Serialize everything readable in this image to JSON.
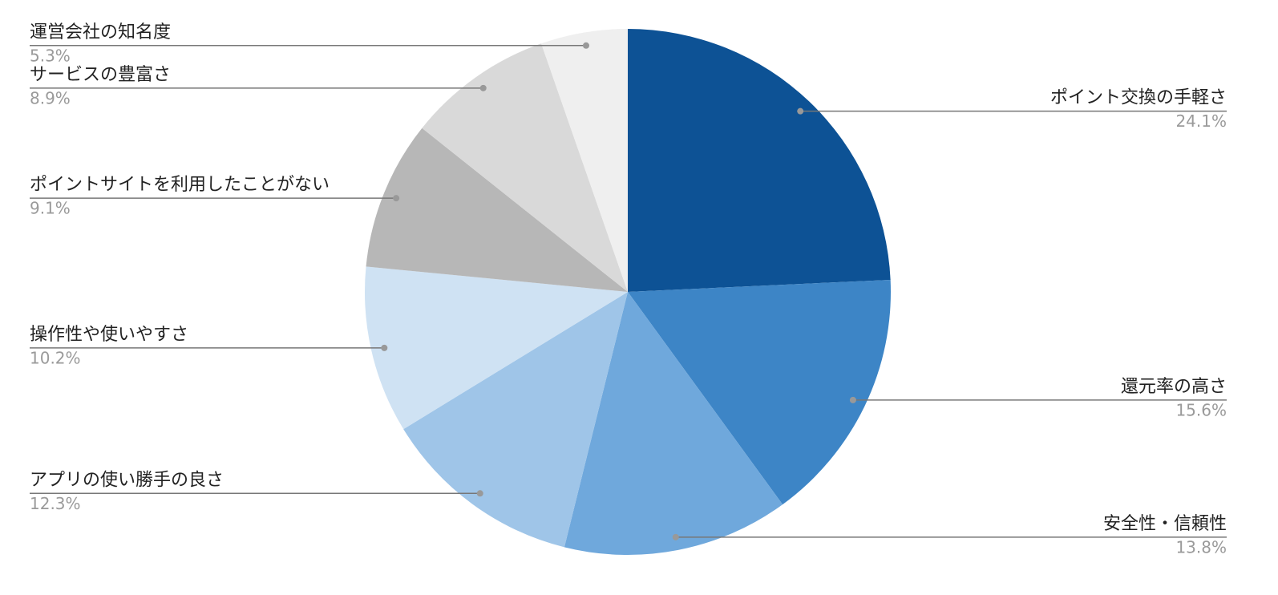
{
  "chart_data": {
    "type": "pie",
    "categories": [
      "ポイント交換の手軽さ",
      "還元率の高さ",
      "安全性・信頼性",
      "アプリの使い勝手の良さ",
      "操作性や使いやすさ",
      "ポイントサイトを利用したことがない",
      "サービスの豊富さ",
      "運営会社の知名度"
    ],
    "values": [
      24.1,
      15.6,
      13.8,
      12.3,
      10.2,
      9.1,
      8.9,
      5.3
    ],
    "value_labels": [
      "24.1%",
      "15.6%",
      "13.8%",
      "12.3%",
      "10.2%",
      "9.1%",
      "8.9%",
      "5.3%"
    ],
    "colors": [
      "#0d5295",
      "#3d85c6",
      "#6fa8dc",
      "#9fc5e8",
      "#cfe2f3",
      "#b7b7b7",
      "#d9d9d9",
      "#efefef"
    ]
  }
}
